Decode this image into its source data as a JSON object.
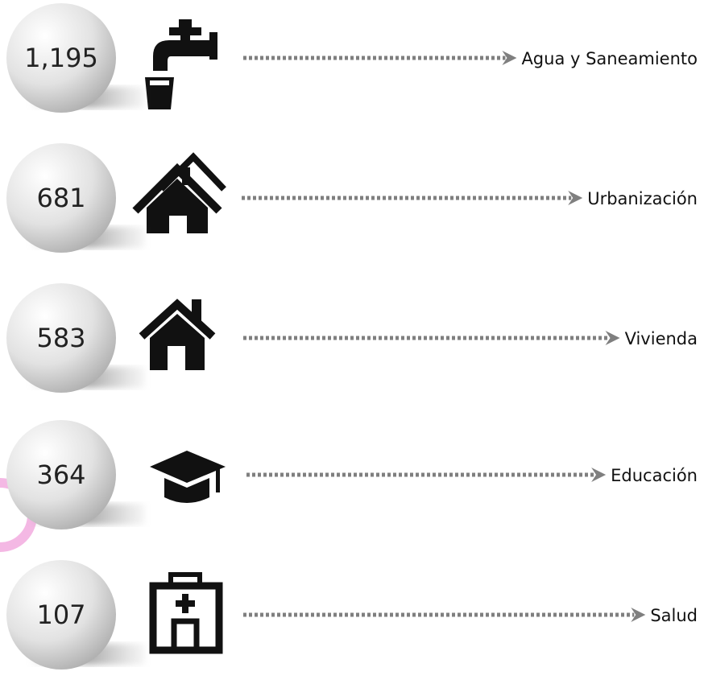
{
  "items": [
    {
      "value": "1,195",
      "label": "Agua y Saneamiento"
    },
    {
      "value": "681",
      "label": "Urbanización"
    },
    {
      "value": "583",
      "label": "Vivienda"
    },
    {
      "value": "364",
      "label": "Educación"
    },
    {
      "value": "107",
      "label": "Salud"
    }
  ]
}
